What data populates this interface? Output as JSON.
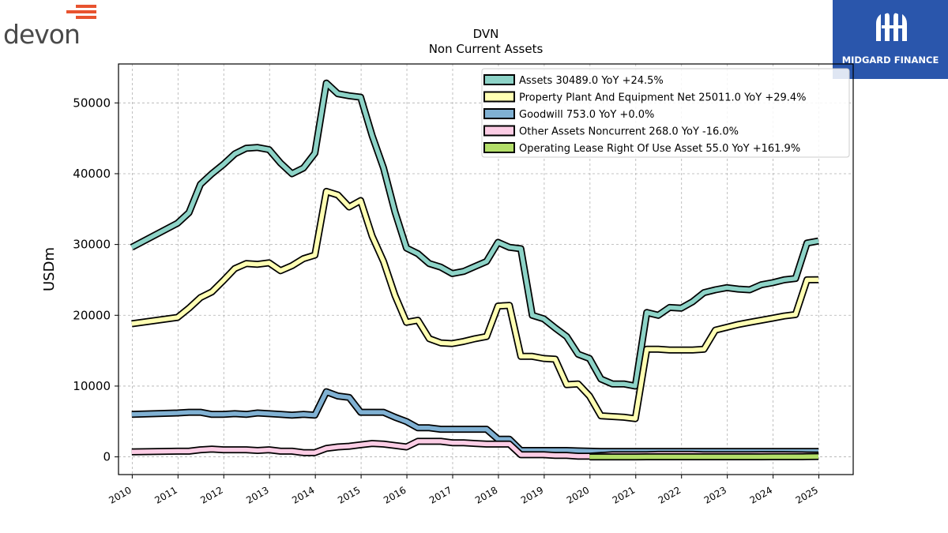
{
  "branding": {
    "left_logo_text": "devon",
    "right_logo_text": "MIDGARD FINANCE"
  },
  "colors": {
    "assets": "#8dd3c7",
    "ppe": "#ffffb3",
    "goodwill": "#80b1d3",
    "other": "#fccde5",
    "lease": "#b3de69",
    "devon_orange": "#e8532f",
    "midgard_blue": "#2a56ac"
  },
  "chart_data": {
    "type": "line",
    "title": "DVN",
    "subtitle": "Non Current  Assets",
    "ylabel": "USDm",
    "xlim": [
      2009.7,
      2025.75
    ],
    "ylim": [
      -2500,
      55500
    ],
    "yticks": [
      0,
      10000,
      20000,
      30000,
      40000,
      50000
    ],
    "xticks": [
      "2010",
      "2011",
      "2012",
      "2013",
      "2014",
      "2015",
      "2016",
      "2017",
      "2018",
      "2019",
      "2020",
      "2021",
      "2022",
      "2023",
      "2024",
      "2025"
    ],
    "grid": true,
    "legend_position": "top-right",
    "series": [
      {
        "name": "Assets  30489.0 YoY +24.5%",
        "color_key": "assets",
        "points": [
          [
            2009.99,
            29600
          ],
          [
            2010.99,
            33000
          ],
          [
            2011.24,
            34500
          ],
          [
            2011.49,
            38500
          ],
          [
            2011.74,
            40000
          ],
          [
            2011.99,
            41300
          ],
          [
            2012.24,
            42800
          ],
          [
            2012.49,
            43600
          ],
          [
            2012.74,
            43700
          ],
          [
            2012.99,
            43400
          ],
          [
            2013.24,
            41500
          ],
          [
            2013.49,
            40000
          ],
          [
            2013.74,
            40800
          ],
          [
            2013.99,
            42900
          ],
          [
            2014.24,
            52800
          ],
          [
            2014.49,
            51300
          ],
          [
            2014.74,
            51000
          ],
          [
            2014.99,
            50800
          ],
          [
            2015.24,
            45400
          ],
          [
            2015.49,
            40800
          ],
          [
            2015.74,
            34600
          ],
          [
            2015.99,
            29500
          ],
          [
            2016.24,
            28700
          ],
          [
            2016.49,
            27300
          ],
          [
            2016.74,
            26800
          ],
          [
            2016.99,
            25900
          ],
          [
            2017.24,
            26200
          ],
          [
            2017.49,
            26900
          ],
          [
            2017.74,
            27600
          ],
          [
            2017.99,
            30300
          ],
          [
            2018.24,
            29600
          ],
          [
            2018.49,
            29400
          ],
          [
            2018.74,
            20000
          ],
          [
            2018.99,
            19500
          ],
          [
            2019.24,
            18200
          ],
          [
            2019.49,
            17000
          ],
          [
            2019.74,
            14500
          ],
          [
            2019.99,
            13900
          ],
          [
            2020.24,
            11000
          ],
          [
            2020.49,
            10300
          ],
          [
            2020.74,
            10300
          ],
          [
            2020.99,
            10000
          ],
          [
            2021.24,
            20400
          ],
          [
            2021.49,
            20000
          ],
          [
            2021.74,
            21100
          ],
          [
            2021.99,
            21000
          ],
          [
            2022.24,
            21900
          ],
          [
            2022.49,
            23200
          ],
          [
            2022.74,
            23600
          ],
          [
            2022.99,
            23900
          ],
          [
            2023.24,
            23700
          ],
          [
            2023.49,
            23600
          ],
          [
            2023.74,
            24300
          ],
          [
            2023.99,
            24600
          ],
          [
            2024.24,
            25000
          ],
          [
            2024.49,
            25200
          ],
          [
            2024.74,
            30200
          ],
          [
            2024.99,
            30489
          ]
        ]
      },
      {
        "name": "Property Plant And Equipment Net  25011.0 YoY +29.4%",
        "color_key": "ppe",
        "points": [
          [
            2009.99,
            18800
          ],
          [
            2010.99,
            19700
          ],
          [
            2011.24,
            21000
          ],
          [
            2011.49,
            22500
          ],
          [
            2011.74,
            23300
          ],
          [
            2011.99,
            24900
          ],
          [
            2012.24,
            26600
          ],
          [
            2012.49,
            27300
          ],
          [
            2012.74,
            27200
          ],
          [
            2012.99,
            27400
          ],
          [
            2013.24,
            26300
          ],
          [
            2013.49,
            27000
          ],
          [
            2013.74,
            28000
          ],
          [
            2013.99,
            28500
          ],
          [
            2014.24,
            37500
          ],
          [
            2014.49,
            37000
          ],
          [
            2014.74,
            35300
          ],
          [
            2014.99,
            36200
          ],
          [
            2015.24,
            31200
          ],
          [
            2015.49,
            27600
          ],
          [
            2015.74,
            22800
          ],
          [
            2015.99,
            19000
          ],
          [
            2016.24,
            19300
          ],
          [
            2016.49,
            16700
          ],
          [
            2016.74,
            16100
          ],
          [
            2016.99,
            16000
          ],
          [
            2017.24,
            16300
          ],
          [
            2017.49,
            16700
          ],
          [
            2017.74,
            17000
          ],
          [
            2017.99,
            21300
          ],
          [
            2018.24,
            21400
          ],
          [
            2018.49,
            14200
          ],
          [
            2018.74,
            14200
          ],
          [
            2018.99,
            13900
          ],
          [
            2019.24,
            13800
          ],
          [
            2019.49,
            10200
          ],
          [
            2019.74,
            10300
          ],
          [
            2019.99,
            8600
          ],
          [
            2020.24,
            5800
          ],
          [
            2020.49,
            5700
          ],
          [
            2020.74,
            5600
          ],
          [
            2020.99,
            5400
          ],
          [
            2021.24,
            15200
          ],
          [
            2021.49,
            15200
          ],
          [
            2021.74,
            15100
          ],
          [
            2021.99,
            15100
          ],
          [
            2022.24,
            15100
          ],
          [
            2022.49,
            15200
          ],
          [
            2022.74,
            17900
          ],
          [
            2022.99,
            18300
          ],
          [
            2023.24,
            18700
          ],
          [
            2023.49,
            19000
          ],
          [
            2023.74,
            19300
          ],
          [
            2023.99,
            19600
          ],
          [
            2024.24,
            19900
          ],
          [
            2024.49,
            20100
          ],
          [
            2024.74,
            25000
          ],
          [
            2024.99,
            25011
          ]
        ]
      },
      {
        "name": "Goodwill  753.0 YoY +0.0%",
        "color_key": "goodwill",
        "points": [
          [
            2009.99,
            6000
          ],
          [
            2010.99,
            6200
          ],
          [
            2011.24,
            6300
          ],
          [
            2011.49,
            6300
          ],
          [
            2011.74,
            6000
          ],
          [
            2011.99,
            6000
          ],
          [
            2012.24,
            6100
          ],
          [
            2012.49,
            6000
          ],
          [
            2012.74,
            6200
          ],
          [
            2012.99,
            6100
          ],
          [
            2013.24,
            6000
          ],
          [
            2013.49,
            5900
          ],
          [
            2013.74,
            6000
          ],
          [
            2013.99,
            5900
          ],
          [
            2014.24,
            9200
          ],
          [
            2014.49,
            8600
          ],
          [
            2014.74,
            8400
          ],
          [
            2014.99,
            6300
          ],
          [
            2015.24,
            6300
          ],
          [
            2015.49,
            6300
          ],
          [
            2015.74,
            5600
          ],
          [
            2015.99,
            5000
          ],
          [
            2016.24,
            4100
          ],
          [
            2016.49,
            4100
          ],
          [
            2016.74,
            3900
          ],
          [
            2016.99,
            3900
          ],
          [
            2017.24,
            3900
          ],
          [
            2017.49,
            3900
          ],
          [
            2017.74,
            3900
          ],
          [
            2017.99,
            2500
          ],
          [
            2018.24,
            2500
          ],
          [
            2018.49,
            900
          ],
          [
            2018.74,
            900
          ],
          [
            2018.99,
            900
          ],
          [
            2019.24,
            900
          ],
          [
            2019.49,
            900
          ],
          [
            2019.74,
            850
          ],
          [
            2019.99,
            800
          ],
          [
            2020.24,
            753
          ],
          [
            2020.49,
            753
          ],
          [
            2020.74,
            753
          ],
          [
            2020.99,
            753
          ],
          [
            2021.24,
            753
          ],
          [
            2021.49,
            753
          ],
          [
            2021.74,
            753
          ],
          [
            2021.99,
            753
          ],
          [
            2022.24,
            753
          ],
          [
            2022.49,
            753
          ],
          [
            2022.74,
            753
          ],
          [
            2022.99,
            753
          ],
          [
            2023.24,
            753
          ],
          [
            2023.49,
            753
          ],
          [
            2023.74,
            753
          ],
          [
            2023.99,
            753
          ],
          [
            2024.24,
            753
          ],
          [
            2024.49,
            753
          ],
          [
            2024.74,
            753
          ],
          [
            2024.99,
            753
          ]
        ]
      },
      {
        "name": "Other Assets Noncurrent  268.0 YoY -16.0%",
        "color_key": "other",
        "points": [
          [
            2009.99,
            700
          ],
          [
            2010.99,
            800
          ],
          [
            2011.24,
            800
          ],
          [
            2011.49,
            1000
          ],
          [
            2011.74,
            1100
          ],
          [
            2011.99,
            1000
          ],
          [
            2012.24,
            1000
          ],
          [
            2012.49,
            1000
          ],
          [
            2012.74,
            900
          ],
          [
            2012.99,
            1000
          ],
          [
            2013.24,
            800
          ],
          [
            2013.49,
            800
          ],
          [
            2013.74,
            600
          ],
          [
            2013.99,
            600
          ],
          [
            2014.24,
            1200
          ],
          [
            2014.49,
            1400
          ],
          [
            2014.74,
            1500
          ],
          [
            2014.99,
            1700
          ],
          [
            2015.24,
            1900
          ],
          [
            2015.49,
            1800
          ],
          [
            2015.74,
            1600
          ],
          [
            2015.99,
            1400
          ],
          [
            2016.24,
            2200
          ],
          [
            2016.49,
            2200
          ],
          [
            2016.74,
            2200
          ],
          [
            2016.99,
            2000
          ],
          [
            2017.24,
            2000
          ],
          [
            2017.49,
            1900
          ],
          [
            2017.74,
            1800
          ],
          [
            2017.99,
            1800
          ],
          [
            2018.24,
            1800
          ],
          [
            2018.49,
            300
          ],
          [
            2018.74,
            300
          ],
          [
            2018.99,
            300
          ],
          [
            2019.24,
            200
          ],
          [
            2019.49,
            200
          ],
          [
            2019.74,
            100
          ],
          [
            2019.99,
            100
          ],
          [
            2020.24,
            200
          ],
          [
            2020.49,
            300
          ],
          [
            2020.74,
            300
          ],
          [
            2020.99,
            300
          ],
          [
            2021.24,
            300
          ],
          [
            2021.49,
            350
          ],
          [
            2021.74,
            350
          ],
          [
            2021.99,
            350
          ],
          [
            2022.24,
            350
          ],
          [
            2022.49,
            300
          ],
          [
            2022.74,
            300
          ],
          [
            2022.99,
            300
          ],
          [
            2023.24,
            300
          ],
          [
            2023.49,
            300
          ],
          [
            2023.74,
            320
          ],
          [
            2023.99,
            320
          ],
          [
            2024.24,
            320
          ],
          [
            2024.49,
            300
          ],
          [
            2024.74,
            280
          ],
          [
            2024.99,
            268
          ]
        ]
      },
      {
        "name": "Operating Lease Right Of Use Asset  55.0 YoY +161.9%",
        "color_key": "lease",
        "points": [
          [
            2019.99,
            0
          ],
          [
            2020.24,
            0
          ],
          [
            2020.49,
            0
          ],
          [
            2020.74,
            0
          ],
          [
            2020.99,
            0
          ],
          [
            2021.24,
            10
          ],
          [
            2021.49,
            10
          ],
          [
            2021.74,
            15
          ],
          [
            2021.99,
            15
          ],
          [
            2022.24,
            15
          ],
          [
            2022.49,
            15
          ],
          [
            2022.74,
            15
          ],
          [
            2022.99,
            15
          ],
          [
            2023.24,
            15
          ],
          [
            2023.49,
            15
          ],
          [
            2023.74,
            15
          ],
          [
            2023.99,
            20
          ],
          [
            2024.24,
            20
          ],
          [
            2024.49,
            21
          ],
          [
            2024.74,
            30
          ],
          [
            2024.99,
            55
          ]
        ]
      }
    ]
  }
}
